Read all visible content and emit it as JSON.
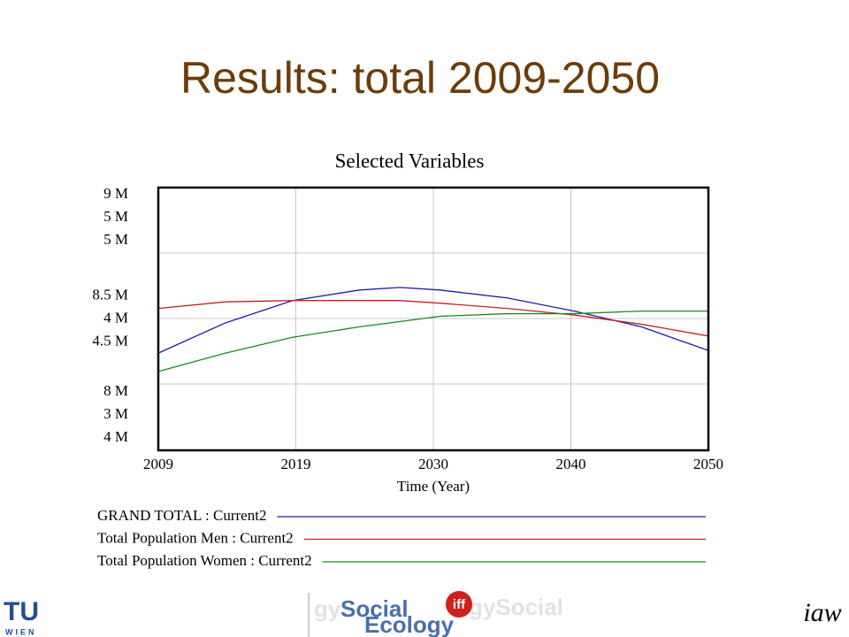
{
  "slide_title": "Results: total 2009-2050",
  "logos": {
    "left": "TU",
    "left_sub": "WIEN",
    "center_top": "Social",
    "center_bottom": "Ecology",
    "center_badge": "iff",
    "right": "iaw"
  },
  "chart_data": {
    "type": "line",
    "title": "Selected Variables",
    "x_label": "Time (Year)",
    "x": [
      2009,
      2014,
      2019,
      2024,
      2027,
      2030,
      2035,
      2040,
      2045,
      2050
    ],
    "xlim": [
      2009,
      2050
    ],
    "xticks": [
      2009,
      {
        "value": 2019.25,
        "label": "2019"
      },
      {
        "value": 2029.5,
        "label": "2030"
      },
      {
        "value": 2039.75,
        "label": "2040"
      },
      2050
    ],
    "grid": true,
    "series": [
      {
        "name": "GRAND TOTAL : Current2",
        "color": "#1c1ca8",
        "values": [
          8370000,
          8485000,
          8570000,
          8610000,
          8620000,
          8610000,
          8580000,
          8530000,
          8470000,
          8380000
        ],
        "ylim": [
          8000000,
          9000000
        ],
        "yticks": [
          {
            "value": 8000000,
            "label": "8 M"
          },
          {
            "value": 8500000,
            "label": "8.5 M"
          },
          {
            "value": 9000000,
            "label": "9 M"
          }
        ]
      },
      {
        "name": "Total Population Men : Current2",
        "color": "#c42020",
        "values": [
          4080000,
          4130000,
          4140000,
          4140000,
          4140000,
          4120000,
          4080000,
          4030000,
          3960000,
          3870000
        ],
        "ylim": [
          3000000,
          5000000
        ],
        "yticks": [
          {
            "value": 3000000,
            "label": "3 M"
          },
          {
            "value": 4000000,
            "label": "4 M"
          },
          {
            "value": 5000000,
            "label": "5 M"
          }
        ]
      },
      {
        "name": "Total Population Women : Current2",
        "color": "#1a8a1a",
        "values": [
          4300000,
          4370000,
          4430000,
          4470000,
          4490000,
          4510000,
          4520000,
          4520000,
          4530000,
          4530000
        ],
        "ylim": [
          4000000,
          5000000
        ],
        "yticks": [
          {
            "value": 4000000,
            "label": "4 M"
          },
          {
            "value": 4500000,
            "label": "4.5 M"
          },
          {
            "value": 5000000,
            "label": "5 M"
          }
        ]
      }
    ]
  }
}
